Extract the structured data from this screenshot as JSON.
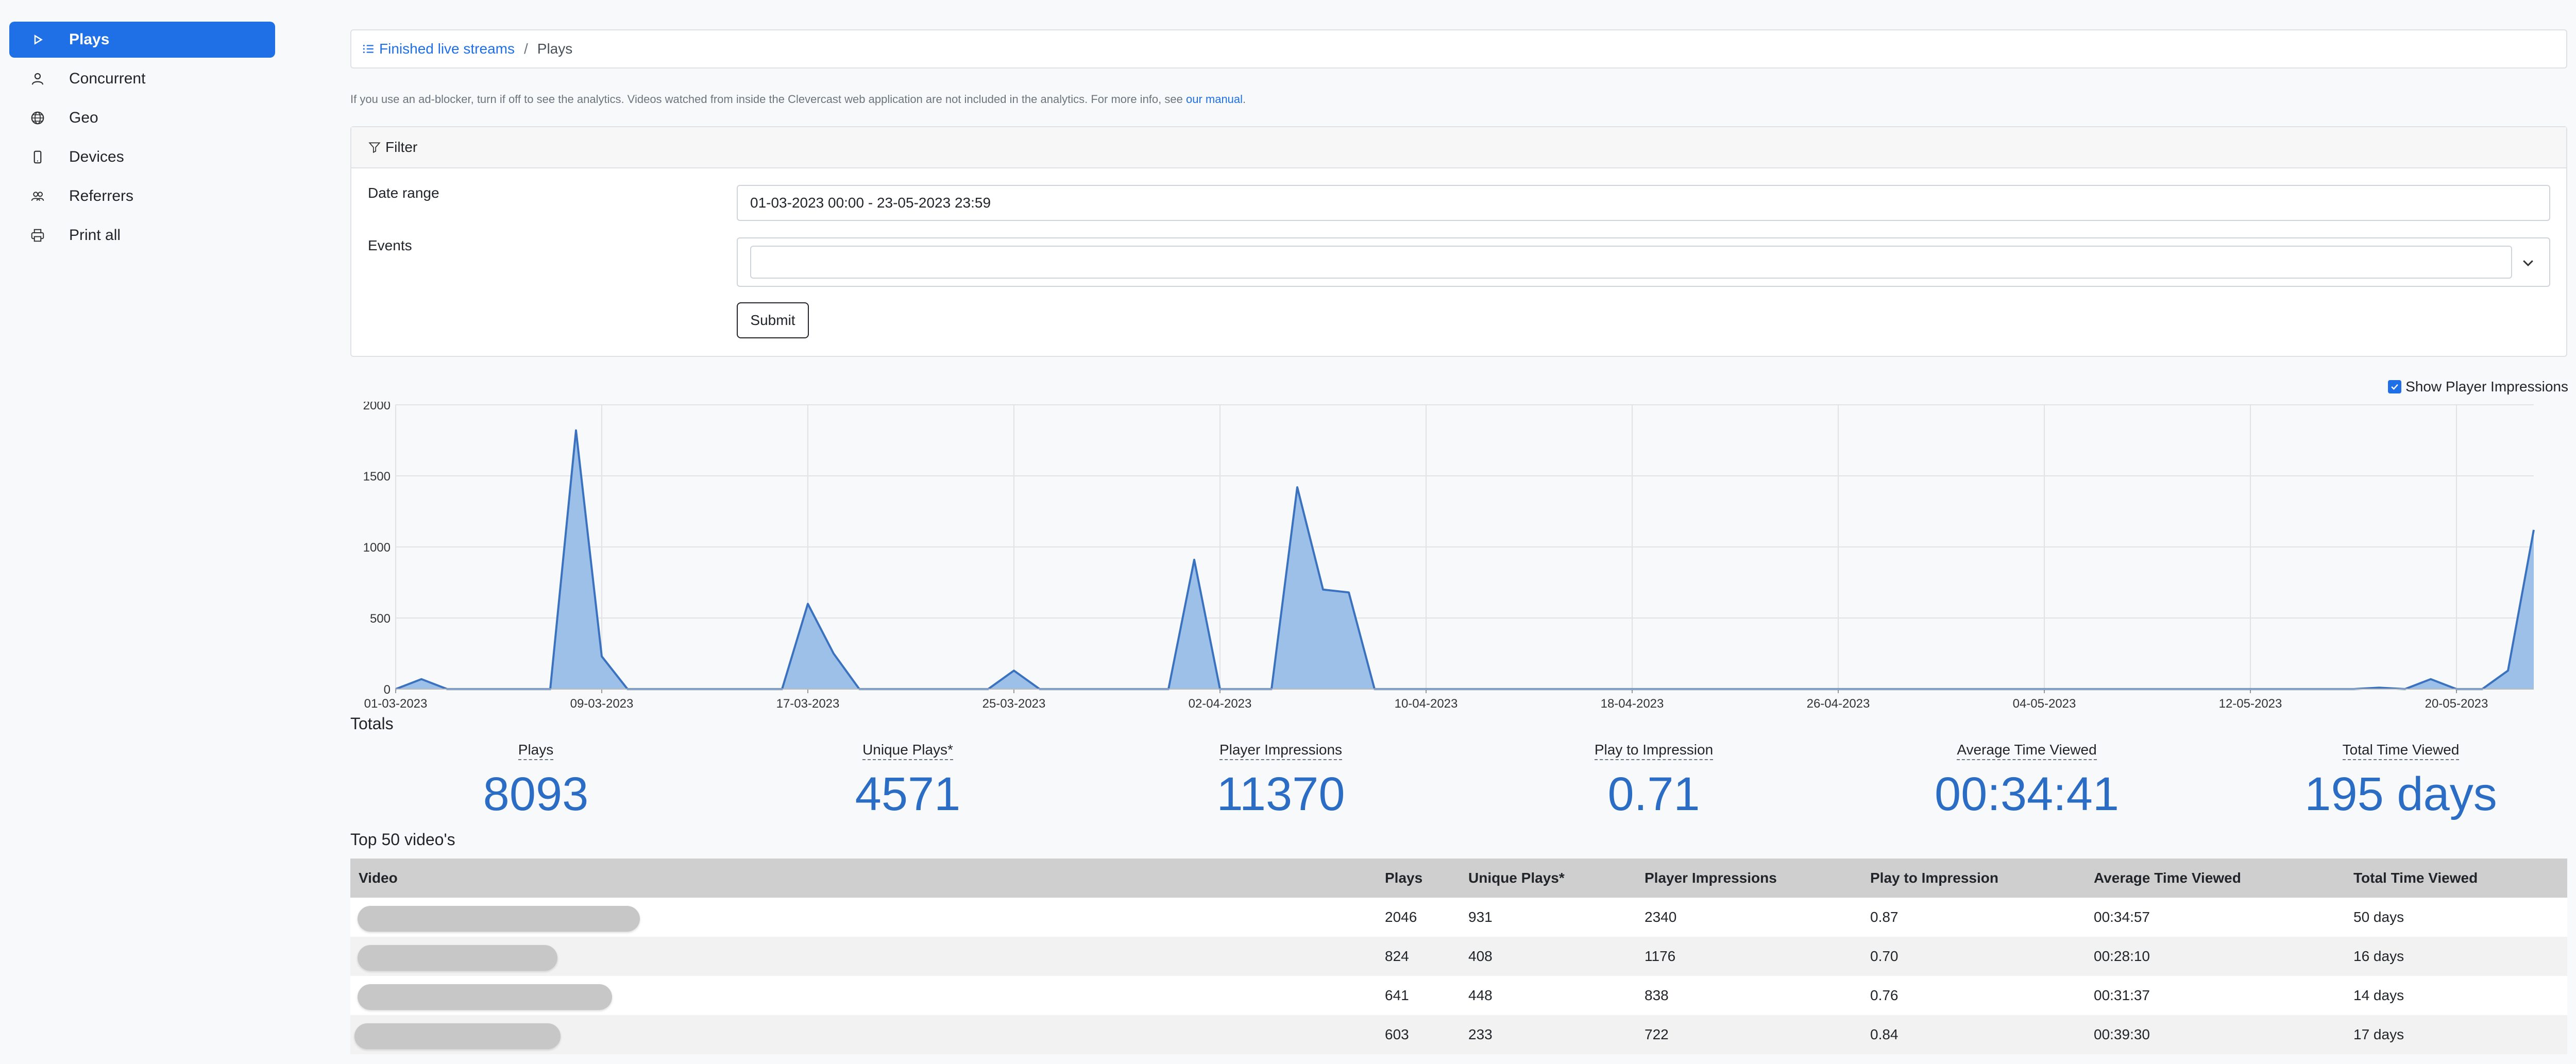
{
  "sidebar": {
    "items": [
      {
        "label": "Plays",
        "icon": "play-icon",
        "active": true
      },
      {
        "label": "Concurrent",
        "icon": "user-icon"
      },
      {
        "label": "Geo",
        "icon": "globe-icon"
      },
      {
        "label": "Devices",
        "icon": "phone-icon"
      },
      {
        "label": "Referrers",
        "icon": "users-icon"
      },
      {
        "label": "Print all",
        "icon": "printer-icon"
      }
    ]
  },
  "breadcrumb": {
    "parent": "Finished live streams",
    "separator": "/",
    "current": "Plays"
  },
  "notice": {
    "text": "If you use an ad-blocker, turn if off to see the analytics. Videos watched from inside the Clevercast web application are not included in the analytics. For more info, see ",
    "link": "our manual",
    "end": "."
  },
  "filter": {
    "title": "Filter",
    "date_label": "Date range",
    "date_value": "01-03-2023 00:00 - 23-05-2023 23:59",
    "events_label": "Events",
    "submit_label": "Submit"
  },
  "show_impressions": {
    "label": "Show Player Impressions",
    "checked": true
  },
  "chart_data": {
    "type": "area",
    "ylim": [
      0,
      2000
    ],
    "yticks": [
      0,
      500,
      1000,
      1500,
      2000
    ],
    "xtick_labels": [
      "01-03-2023",
      "09-03-2023",
      "17-03-2023",
      "25-03-2023",
      "02-04-2023",
      "10-04-2023",
      "18-04-2023",
      "26-04-2023",
      "04-05-2023",
      "12-05-2023",
      "20-05-2023"
    ],
    "series": [
      {
        "color": "#3a72c0",
        "fill": "#9cc0e8",
        "values": [
          0,
          70,
          0,
          0,
          0,
          0,
          0,
          1820,
          230,
          0,
          0,
          0,
          0,
          0,
          0,
          0,
          600,
          250,
          0,
          0,
          0,
          0,
          0,
          0,
          130,
          0,
          0,
          0,
          0,
          0,
          0,
          910,
          0,
          0,
          0,
          1420,
          700,
          680,
          0,
          0,
          0,
          0,
          0,
          0,
          0,
          0,
          0,
          0,
          0,
          0,
          0,
          0,
          0,
          0,
          0,
          0,
          0,
          0,
          0,
          0,
          0,
          0,
          0,
          0,
          0,
          0,
          0,
          0,
          0,
          0,
          0,
          0,
          0,
          0,
          0,
          0,
          0,
          10,
          0,
          70,
          0,
          0,
          130,
          1120
        ]
      }
    ]
  },
  "totals": {
    "title": "Totals",
    "stats": [
      {
        "label": "Plays",
        "value": "8093"
      },
      {
        "label": "Unique Plays*",
        "value": "4571"
      },
      {
        "label": "Player Impressions",
        "value": "11370"
      },
      {
        "label": "Play to Impression",
        "value": "0.71"
      },
      {
        "label": "Average Time Viewed",
        "value": "00:34:41"
      },
      {
        "label": "Total Time Viewed",
        "value": "195 days"
      }
    ]
  },
  "top_videos": {
    "title": "Top 50 video's",
    "columns": [
      "Video",
      "Plays",
      "Unique Plays*",
      "Player Impressions",
      "Play to Impression",
      "Average Time Viewed",
      "Total Time Viewed"
    ],
    "rows": [
      {
        "plays": "2046",
        "unique": "931",
        "impressions": "2340",
        "ratio": "0.87",
        "avg": "00:34:57",
        "total": "50 days"
      },
      {
        "plays": "824",
        "unique": "408",
        "impressions": "1176",
        "ratio": "0.70",
        "avg": "00:28:10",
        "total": "16 days"
      },
      {
        "plays": "641",
        "unique": "448",
        "impressions": "838",
        "ratio": "0.76",
        "avg": "00:31:37",
        "total": "14 days"
      },
      {
        "plays": "603",
        "unique": "233",
        "impressions": "722",
        "ratio": "0.84",
        "avg": "00:39:30",
        "total": "17 days"
      }
    ]
  }
}
